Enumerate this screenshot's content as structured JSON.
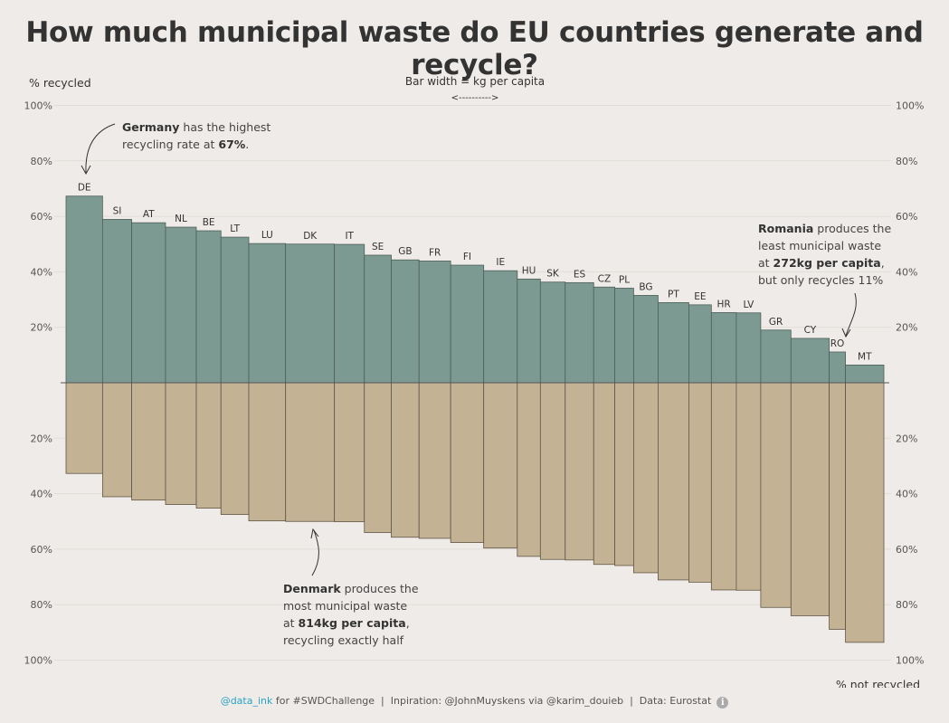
{
  "title": "How much municipal waste do EU countries generate and recycle?",
  "axes": {
    "y_top_label": "% recycled",
    "y_bottom_label": "% not recycled",
    "width_label": "Bar width = kg per capita",
    "width_arrow": "<---------->",
    "ticks_top": [
      "100%",
      "80%",
      "60%",
      "40%",
      "20%"
    ],
    "ticks_bottom": [
      "20%",
      "40%",
      "60%",
      "80%",
      "100%"
    ]
  },
  "annotations": {
    "germany": {
      "bold": "Germany",
      "line1_rest": " has the highest",
      "line2_pre": "recycling rate at ",
      "line2_bold": "67%",
      "line2_post": "."
    },
    "romania": {
      "bold": "Romania",
      "line1_rest": " produces the",
      "line2": "least municipal waste",
      "line3_pre": "at ",
      "line3_bold": "272kg per capita",
      "line3_post": ",",
      "line4": "but only recycles 11%"
    },
    "denmark": {
      "bold": "Denmark",
      "line1_rest": " produces the",
      "line2": "most municipal waste",
      "line3_pre": "at ",
      "line3_bold": "814kg per capita",
      "line3_post": ",",
      "line4": "recycling exactly half"
    }
  },
  "footer": {
    "handle": "@data_ink",
    "rest": " for #SWDChallenge  |  Inpiration: @JohnMuyskens via @karim_douieb  |  Data: Eurostat"
  },
  "colors": {
    "recycled": "#7d9a92",
    "not_recycled": "#c4b295",
    "background": "#efebe8",
    "handle": "#2aa3c9"
  },
  "chart_data": {
    "type": "bar",
    "variable_width": true,
    "width_unit": "kg per capita",
    "ylim": [
      -100,
      100
    ],
    "series": [
      {
        "name": "% recycled"
      },
      {
        "name": "% not recycled"
      }
    ],
    "categories": [
      "DE",
      "SI",
      "AT",
      "NL",
      "BE",
      "LT",
      "LU",
      "DK",
      "IT",
      "SE",
      "GB",
      "FR",
      "FI",
      "IE",
      "HU",
      "SK",
      "ES",
      "CZ",
      "PL",
      "BG",
      "PT",
      "EE",
      "HR",
      "LV",
      "GR",
      "CY",
      "RO",
      "MT"
    ],
    "recycled_pct": [
      67.3,
      58.9,
      57.7,
      56.1,
      54.8,
      52.5,
      50.2,
      50.0,
      49.9,
      46.0,
      44.3,
      43.9,
      42.4,
      40.4,
      37.4,
      36.3,
      36.1,
      34.5,
      34.1,
      31.5,
      28.9,
      28.1,
      25.3,
      25.2,
      19.0,
      16.0,
      11.1,
      6.4
    ],
    "kg_per_capita": [
      609,
      486,
      564,
      513,
      411,
      464,
      614,
      814,
      499,
      449,
      463,
      527,
      551,
      560,
      385,
      414,
      475,
      351,
      315,
      407,
      513,
      376,
      416,
      407,
      504,
      637,
      272,
      640
    ]
  }
}
